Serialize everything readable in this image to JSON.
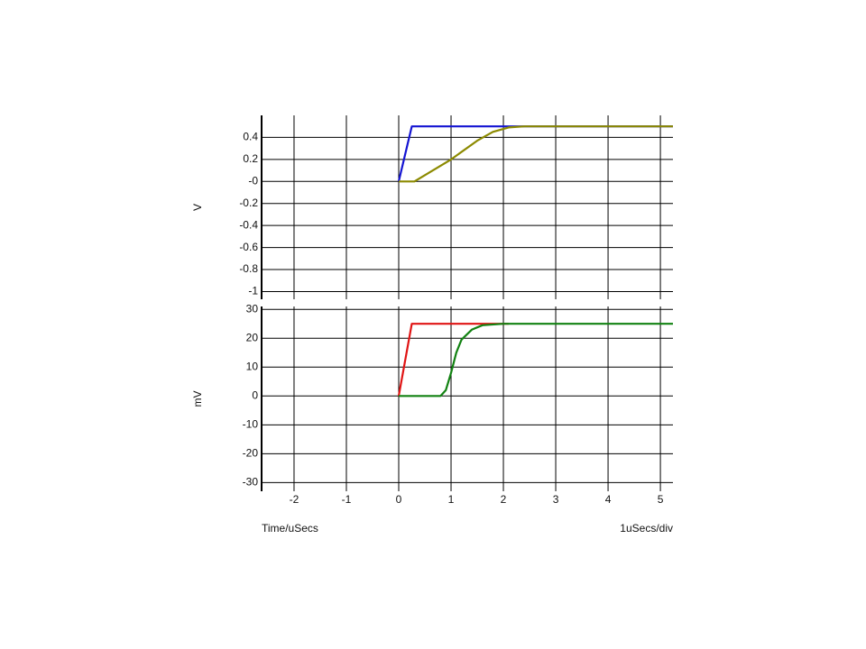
{
  "chart_data": [
    {
      "type": "line",
      "ylabel": "V",
      "xlim": [
        -2.62,
        5.24
      ],
      "xticks": [
        -2,
        -1,
        0,
        1,
        2,
        3,
        4,
        5
      ],
      "ylim": [
        -1.07,
        0.6
      ],
      "yticks": [
        0.4,
        0.2,
        {
          "value": 0,
          "label": "-0"
        },
        -0.2,
        -0.4,
        -0.6,
        -0.8,
        -1
      ],
      "grid": true,
      "series": [
        {
          "color": "#1414d2",
          "x": [
            0,
            0.25,
            5.24
          ],
          "values": [
            0,
            0.5,
            0.5
          ]
        },
        {
          "color": "#8c8a00",
          "x": [
            0,
            0.3,
            1,
            1.5,
            1.8,
            2.1,
            2.4,
            5.24
          ],
          "values": [
            0,
            0,
            0.2,
            0.37,
            0.45,
            0.49,
            0.5,
            0.5
          ]
        }
      ]
    },
    {
      "type": "line",
      "ylabel": "mV",
      "xlabel": "Time/uSecs",
      "scale_label": "1uSecs/div",
      "xlim": [
        -2.62,
        5.24
      ],
      "xticks": [
        -2,
        -1,
        0,
        1,
        2,
        3,
        4,
        5
      ],
      "ylim": [
        -33,
        31
      ],
      "yticks": [
        30,
        20,
        10,
        0,
        -10,
        -20,
        -30
      ],
      "grid": true,
      "series": [
        {
          "color": "#e01414",
          "x": [
            0,
            0.25,
            2.1
          ],
          "values": [
            0,
            25,
            25
          ]
        },
        {
          "color": "#128212",
          "x": [
            0,
            0.8,
            0.9,
            1.0,
            1.1,
            1.2,
            1.4,
            1.6,
            2.0,
            5.24
          ],
          "values": [
            0,
            0,
            2,
            8,
            15,
            19.5,
            23,
            24.5,
            25,
            25
          ]
        }
      ]
    }
  ]
}
